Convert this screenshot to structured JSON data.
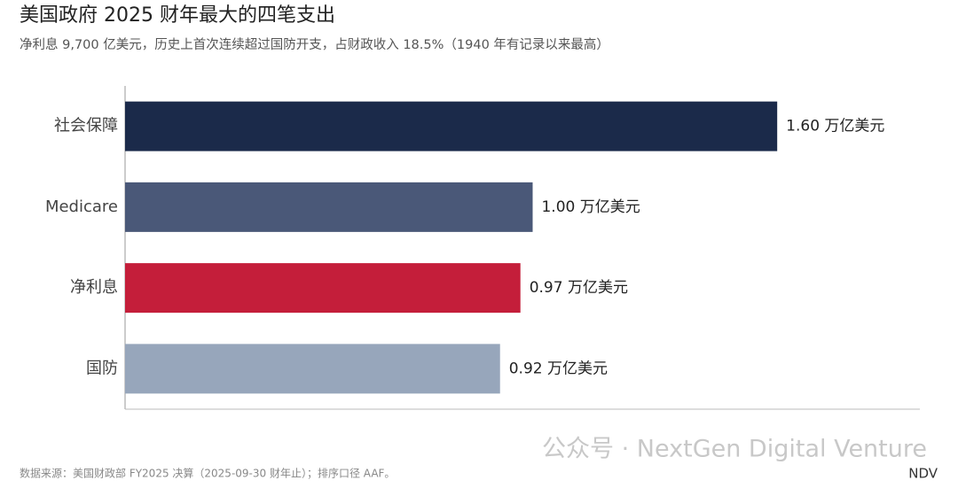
{
  "chart_data": {
    "type": "hbar",
    "title": "美国政府 2025 财年最大的四笔支出",
    "subtitle": "净利息 9,700 亿美元，历史上首次连续超过国防开支，占财政收入 18.5%（1940 年有记录以来最高）",
    "categories": [
      "社会保障",
      "Medicare",
      "净利息",
      "国防"
    ],
    "values": [
      1.6,
      1.0,
      0.97,
      0.92
    ],
    "value_labels": [
      "1.60 万亿美元",
      "1.00 万亿美元",
      "0.97 万亿美元",
      "0.92 万亿美元"
    ],
    "colors": [
      "#1b2a4a",
      "#4a5878",
      "#c41e3a",
      "#97a6bb"
    ],
    "xlim": [
      0,
      1.95
    ],
    "source": "数据来源：美国财政部 FY2025 决算（2025-09-30 财年止）；排序口径 AAF。",
    "brand": "NDV",
    "watermark": "公众号 · NextGen Digital Venture"
  }
}
